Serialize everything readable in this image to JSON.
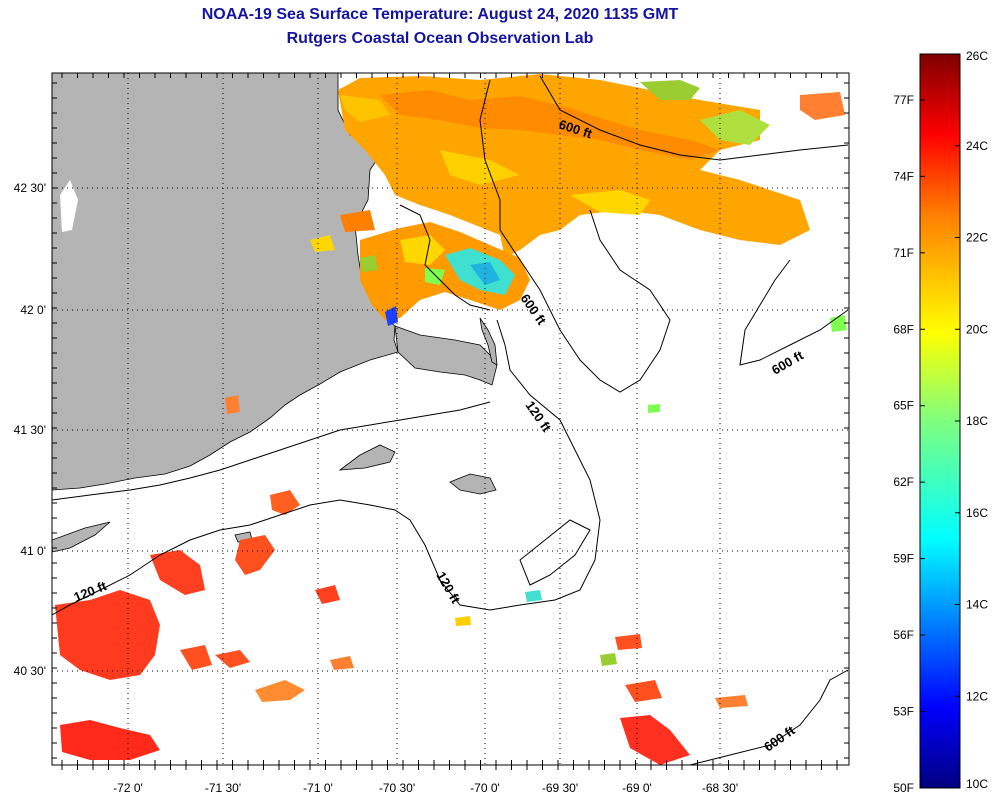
{
  "title": "NOAA-19 Sea Surface Temperature:  August 24, 2020 1135 GMT",
  "subtitle": "Rutgers Coastal Ocean Observation Lab",
  "colors": {
    "land": "#b4b4b4",
    "no_data": "#ffffff",
    "title_text": "#1414a0",
    "contour": "#000000"
  },
  "map": {
    "lon_labels": [
      "-72 0'",
      "-71 30'",
      "-71 0'",
      "-70 30'",
      "-70 0'",
      "-69 30'",
      "-69 0'",
      "-68 30'"
    ],
    "lat_labels": [
      "42 30'",
      "42 0'",
      "41 30'",
      "41 0'",
      "40 30'"
    ],
    "contour_labels": [
      {
        "text": "600 ft"
      },
      {
        "text": "600 ft"
      },
      {
        "text": "600 ft"
      },
      {
        "text": "600 ft"
      },
      {
        "text": "120 ft"
      },
      {
        "text": "120 ft"
      },
      {
        "text": "120 ft"
      }
    ]
  },
  "colorbar": {
    "celsius_labels": [
      "26C",
      "24C",
      "22C",
      "20C",
      "18C",
      "16C",
      "14C",
      "12C",
      "10C"
    ],
    "fahrenheit_labels": [
      "77F",
      "74F",
      "71F",
      "68F",
      "65F",
      "62F",
      "59F",
      "56F",
      "53F",
      "50F"
    ],
    "range_c": [
      10,
      26
    ]
  }
}
